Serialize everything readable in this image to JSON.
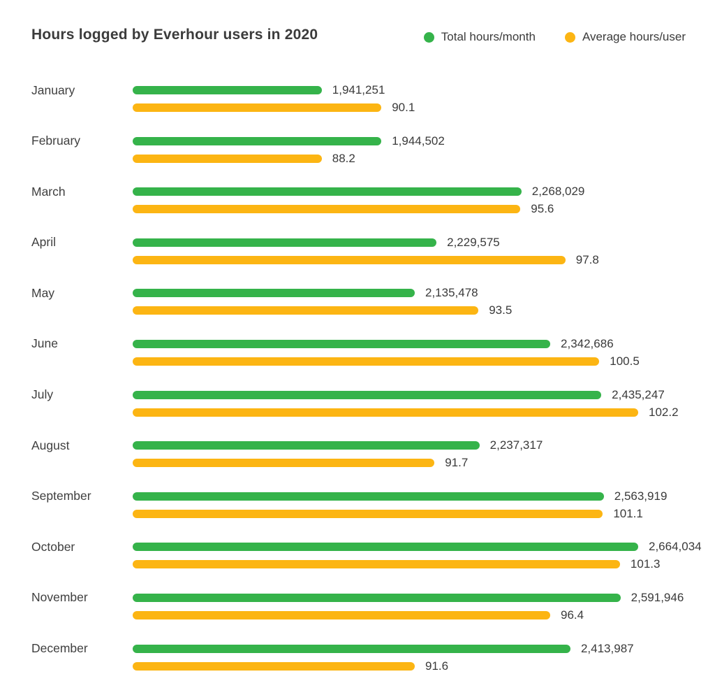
{
  "header": {
    "title": "Hours logged by Everhour users in 2020"
  },
  "chart_data": {
    "type": "bar",
    "orientation": "horizontal",
    "title": "Hours logged by Everhour users in 2020",
    "legend_position": "top-right",
    "grid": false,
    "background_color": "#ffffff",
    "text_color": "#3b3b3b",
    "categories": [
      "January",
      "February",
      "March",
      "April",
      "May",
      "June",
      "July",
      "August",
      "September",
      "October",
      "November",
      "December"
    ],
    "series": [
      {
        "name": "Total hours/month",
        "color": "#35b34a",
        "values": [
          1941251,
          1944502,
          2268029,
          2229575,
          2135478,
          2342686,
          2435247,
          2237317,
          2563919,
          2664034,
          2591946,
          2413987
        ],
        "labels": [
          "1,941,251",
          "1,944,502",
          "2,268,029",
          "2,229,575",
          "2,135,478",
          "2,342,686",
          "2,435,247",
          "2,237,317",
          "2,563,919",
          "2,664,034",
          "2,591,946",
          "2,413,987"
        ],
        "bar_pct": [
          37.4,
          49.2,
          76.9,
          60.1,
          55.8,
          82.6,
          92.7,
          68.6,
          93.2,
          100,
          96.5,
          86.6
        ]
      },
      {
        "name": "Average hours/user",
        "color": "#fcb513",
        "values": [
          90.1,
          88.2,
          95.6,
          97.8,
          93.5,
          100.5,
          102.2,
          91.7,
          101.1,
          101.3,
          96.4,
          91.6
        ],
        "labels": [
          "90.1",
          "88.2",
          "95.6",
          "97.8",
          "93.5",
          "100.5",
          "102.2",
          "91.7",
          "101.1",
          "101.3",
          "96.4",
          "91.6"
        ],
        "bar_pct": [
          49.2,
          37.4,
          76.7,
          85.6,
          68.4,
          92.3,
          100,
          59.7,
          93.0,
          96.4,
          82.6,
          55.8
        ]
      }
    ]
  }
}
